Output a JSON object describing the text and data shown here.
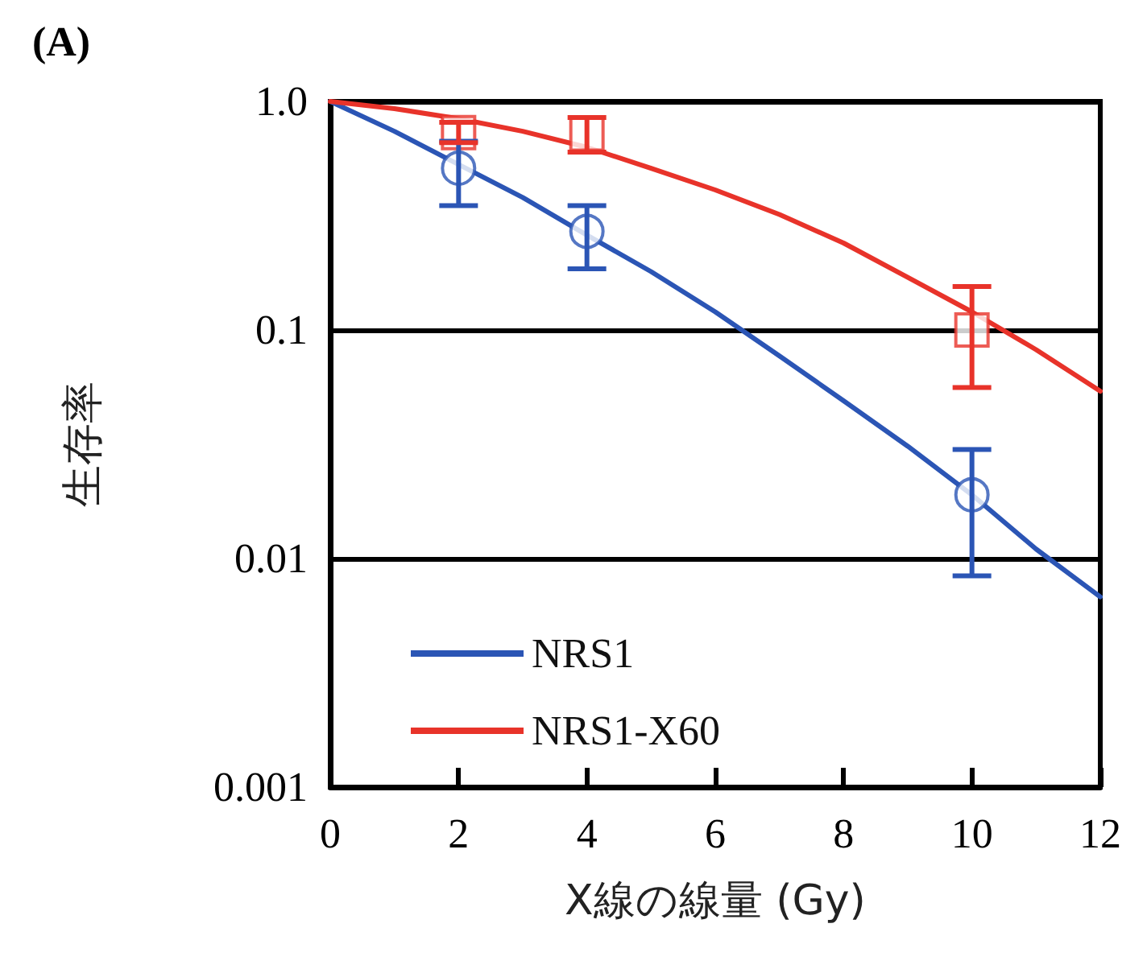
{
  "chart_data": {
    "type": "line",
    "title": "(A)",
    "xlabel": "X線の線量 (Gy)",
    "ylabel": "生存率",
    "log": "y",
    "grid": "y",
    "legend": "bottom left",
    "xlim": [
      0,
      12
    ],
    "xticks": [
      0,
      2,
      4,
      6,
      8,
      10,
      12
    ],
    "ylim": [
      0.001,
      1
    ],
    "yticks": [
      {
        "value": 1,
        "label": "1.0"
      },
      0.1,
      0.01,
      0.001
    ],
    "series": [
      {
        "name": "NRS1",
        "type": "line",
        "color": "#2b55b5",
        "marker": "none",
        "line_style": "solid",
        "x": [
          0,
          1,
          2,
          3,
          4,
          5,
          6,
          7,
          8,
          9,
          10,
          11,
          12
        ],
        "values": [
          1,
          0.74,
          0.53,
          0.38,
          0.26,
          0.18,
          0.12,
          0.077,
          0.049,
          0.031,
          0.019,
          0.011,
          0.0068
        ]
      },
      {
        "name": "NRS1-X60",
        "type": "line",
        "color": "#e8332a",
        "marker": "none",
        "line_style": "solid",
        "x": [
          0,
          1,
          2,
          3,
          4,
          5,
          6,
          7,
          8,
          9,
          10,
          11,
          12
        ],
        "values": [
          1,
          0.93,
          0.84,
          0.74,
          0.63,
          0.51,
          0.41,
          0.32,
          0.24,
          0.17,
          0.12,
          0.082,
          0.054
        ]
      },
      {
        "type": "scatter",
        "color": "#2b55b5",
        "marker": "circle",
        "x": [
          2,
          4,
          10
        ],
        "values": [
          0.51,
          0.27,
          0.019
        ],
        "errors": [
          [
            0.35,
            0.67
          ],
          [
            0.185,
            0.35
          ],
          [
            0.0084,
            0.03
          ]
        ]
      },
      {
        "type": "scatter",
        "color": "#e8332a",
        "marker": "square",
        "x": [
          2,
          4,
          10
        ],
        "values": [
          0.73,
          0.72,
          0.1
        ],
        "errors": [
          [
            0.66,
            0.81
          ],
          [
            0.6,
            0.85
          ],
          [
            0.056,
            0.155
          ]
        ]
      }
    ]
  }
}
